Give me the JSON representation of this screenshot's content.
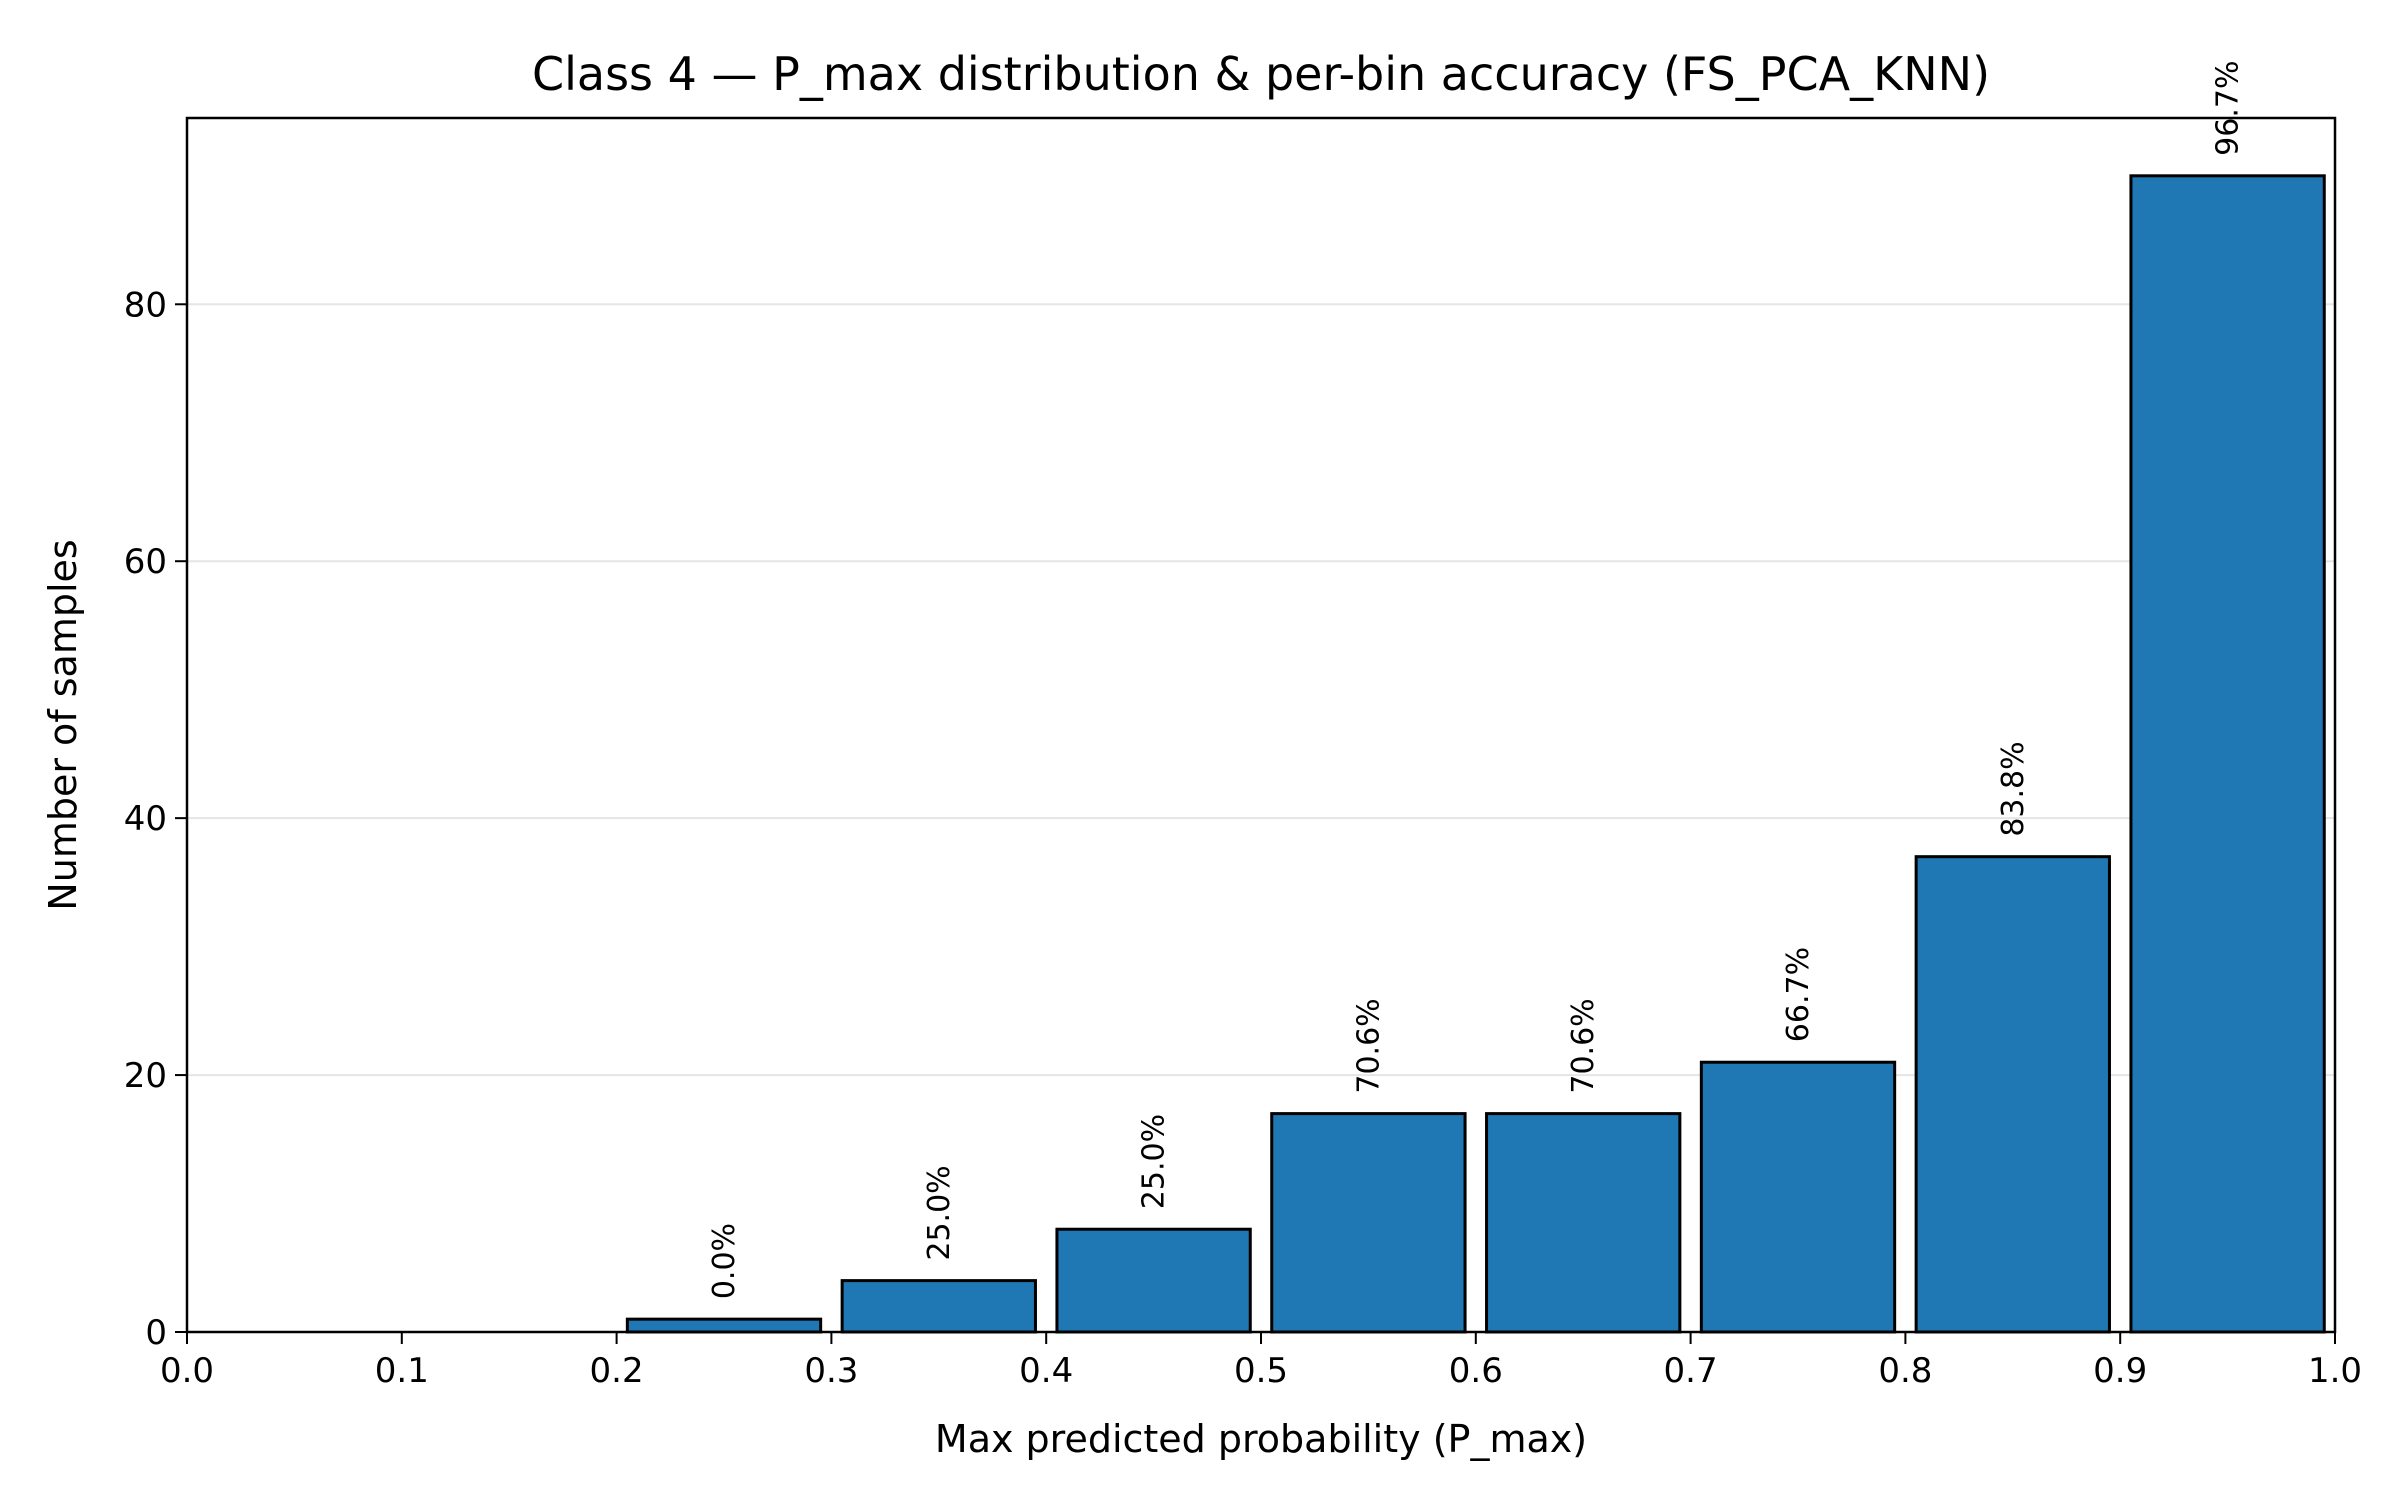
{
  "chart_data": {
    "type": "bar",
    "title": "Class 4 — P_max distribution & per-bin accuracy (FS_PCA_KNN)",
    "xlabel": "Max predicted probability (P_max)",
    "ylabel": "Number of samples",
    "xlim": [
      0.0,
      1.0
    ],
    "ylim": [
      0,
      94.5
    ],
    "xticks": [
      "0.0",
      "0.1",
      "0.2",
      "0.3",
      "0.4",
      "0.5",
      "0.6",
      "0.7",
      "0.8",
      "0.9",
      "1.0"
    ],
    "yticks": [
      "0",
      "20",
      "40",
      "60",
      "80"
    ],
    "grid": "horizontal",
    "bars": [
      {
        "bin": [
          0.0,
          0.1
        ],
        "count": 0,
        "accuracy_label": ""
      },
      {
        "bin": [
          0.1,
          0.2
        ],
        "count": 0,
        "accuracy_label": ""
      },
      {
        "bin": [
          0.2,
          0.3
        ],
        "count": 1,
        "accuracy_label": "0.0%"
      },
      {
        "bin": [
          0.3,
          0.4
        ],
        "count": 4,
        "accuracy_label": "25.0%"
      },
      {
        "bin": [
          0.4,
          0.5
        ],
        "count": 8,
        "accuracy_label": "25.0%"
      },
      {
        "bin": [
          0.5,
          0.6
        ],
        "count": 17,
        "accuracy_label": "70.6%"
      },
      {
        "bin": [
          0.6,
          0.7
        ],
        "count": 17,
        "accuracy_label": "70.6%"
      },
      {
        "bin": [
          0.7,
          0.8
        ],
        "count": 21,
        "accuracy_label": "66.7%"
      },
      {
        "bin": [
          0.8,
          0.9
        ],
        "count": 37,
        "accuracy_label": "83.8%"
      },
      {
        "bin": [
          0.9,
          1.0
        ],
        "count": 90,
        "accuracy_label": "96.7%"
      }
    ],
    "colors": {
      "bar": "#1f77b4",
      "edge": "#000000",
      "grid": "#e5e5e5"
    }
  }
}
